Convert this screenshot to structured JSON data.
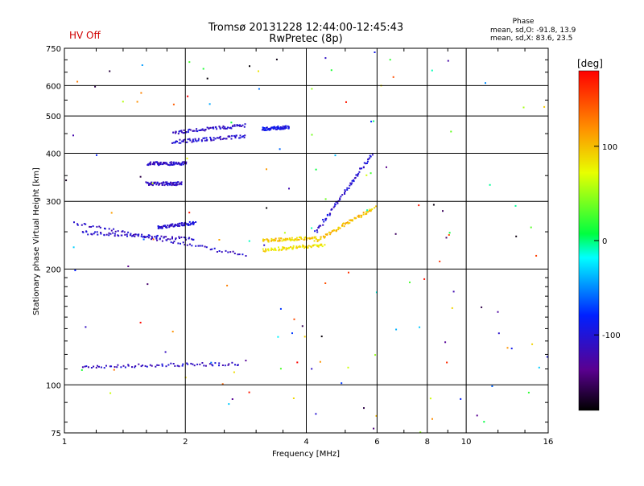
{
  "header": {
    "status": "HV Off",
    "title_line1": "Tromsø 20131228 12:44:00-12:45:43",
    "title_line2": "RwPretec (8p)",
    "phase_title": "Phase",
    "phase_line1": "mean, sd,O: -91.8, 13.9",
    "phase_line2": "mean, sd,X:  83.6, 23.5"
  },
  "colors": {
    "status": "#d00000",
    "low_phase": "#1c2cf0",
    "high_phase": "#e6f000"
  },
  "chart_data": {
    "type": "scatter",
    "title": "Tromsø 20131228 12:44:00-12:45:43",
    "subtitle": "RwPretec (8p)",
    "xlabel": "Frequency [MHz]",
    "ylabel": "Stationary phase Virtual Height [km]",
    "x_scale": "log",
    "y_scale": "log",
    "xlim": [
      1,
      16
    ],
    "ylim": [
      75,
      750
    ],
    "x_ticks": [
      1,
      2,
      4,
      6,
      8,
      10,
      16
    ],
    "y_ticks": [
      75,
      100,
      200,
      300,
      400,
      500,
      600,
      750
    ],
    "grid": true,
    "colorbar": {
      "label": "[deg]",
      "range": [
        -180,
        180
      ],
      "ticks": [
        -100,
        0,
        100
      ],
      "colormap": "rainbow"
    },
    "traces": [
      {
        "name": "low-1",
        "x_start": 1.05,
        "x_end": 2.8,
        "h_start": 265,
        "h_end": 218,
        "phase": -110
      },
      {
        "name": "low-2",
        "x_start": 1.1,
        "x_end": 2.1,
        "h_start": 250,
        "h_end": 240,
        "phase": -108
      },
      {
        "name": "low-3",
        "x_start": 1.7,
        "x_end": 2.1,
        "h_start": 258,
        "h_end": 265,
        "phase": -105
      },
      {
        "name": "mid-1",
        "x_start": 3.1,
        "x_end": 4.2,
        "h_start": 238,
        "h_end": 242,
        "phase": 95
      },
      {
        "name": "mid-2",
        "x_start": 3.1,
        "x_end": 4.4,
        "h_start": 225,
        "h_end": 232,
        "phase": 85
      },
      {
        "name": "mid-3",
        "x_start": 4.2,
        "x_end": 5.9,
        "h_start": 238,
        "h_end": 290,
        "phase": 100
      },
      {
        "name": "rise",
        "x_start": 4.2,
        "x_end": 5.8,
        "h_start": 250,
        "h_end": 400,
        "phase": -105
      },
      {
        "name": "e-1",
        "x_start": 1.6,
        "x_end": 1.95,
        "h_start": 335,
        "h_end": 335,
        "phase": -110
      },
      {
        "name": "e-2",
        "x_start": 1.6,
        "x_end": 2.0,
        "h_start": 378,
        "h_end": 378,
        "phase": -110
      },
      {
        "name": "high-1",
        "x_start": 1.85,
        "x_end": 2.8,
        "h_start": 455,
        "h_end": 475,
        "phase": -108
      },
      {
        "name": "high-2",
        "x_start": 1.85,
        "x_end": 2.8,
        "h_start": 430,
        "h_end": 445,
        "phase": -108
      },
      {
        "name": "high-3",
        "x_start": 3.1,
        "x_end": 3.6,
        "h_start": 465,
        "h_end": 470,
        "phase": -95
      },
      {
        "name": "bottom",
        "x_start": 1.1,
        "x_end": 2.7,
        "h_start": 112,
        "h_end": 114,
        "phase": -110
      }
    ]
  }
}
